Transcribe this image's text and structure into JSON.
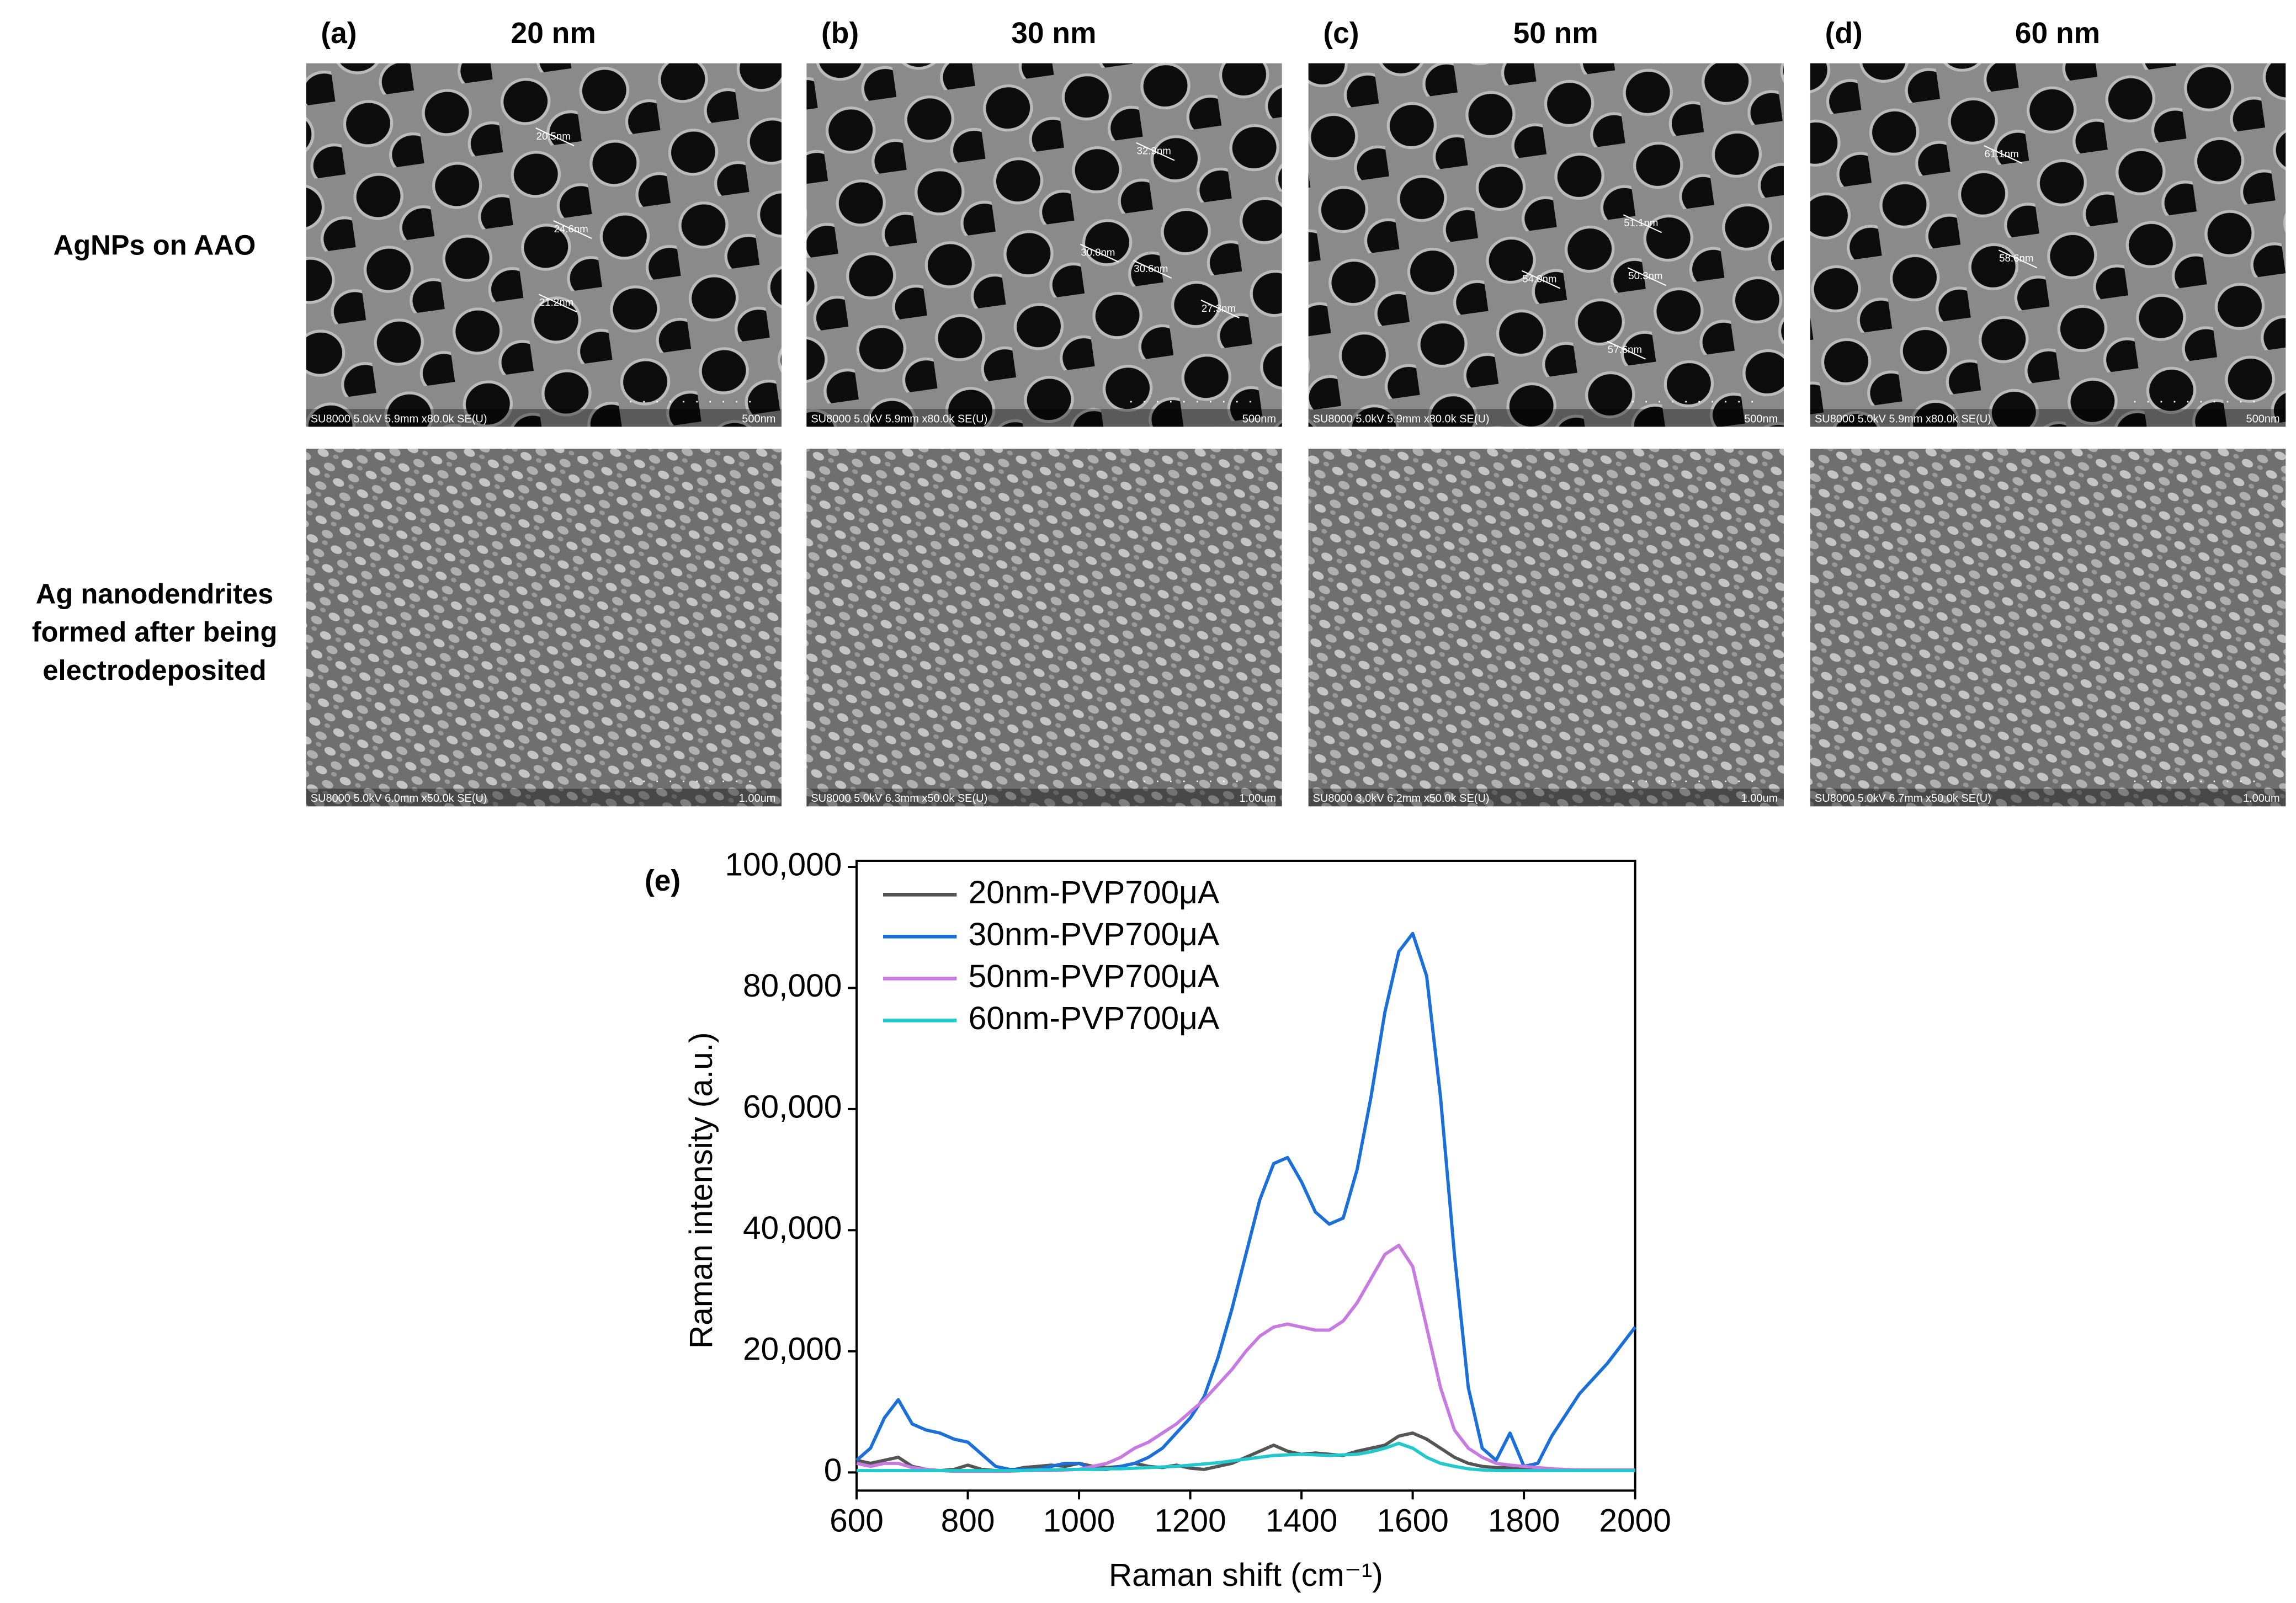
{
  "panels": [
    {
      "label": "(a)",
      "title": "20 nm",
      "sem": [
        {
          "info": "SU8000 5.0kV 5.9mm x80.0k SE(U)",
          "scale": "500nm",
          "measurements": [
            "20.5nm",
            "24.6nm",
            "21.2nm"
          ]
        },
        {
          "info": "SU8000 5.0kV 6.0mm x50.0k SE(U)",
          "scale": "1.00um"
        }
      ]
    },
    {
      "label": "(b)",
      "title": "30 nm",
      "sem": [
        {
          "info": "SU8000 5.0kV 5.9mm x80.0k SE(U)",
          "scale": "500nm",
          "measurements": [
            "32.9nm",
            "30.0nm",
            "30.6nm",
            "27.3nm"
          ]
        },
        {
          "info": "SU8000 5.0kV 6.3mm x50.0k SE(U)",
          "scale": "1.00um"
        }
      ]
    },
    {
      "label": "(c)",
      "title": "50 nm",
      "sem": [
        {
          "info": "SU8000 5.0kV 5.9mm x80.0k SE(U)",
          "scale": "500nm",
          "measurements": [
            "51.1nm",
            "54.0nm",
            "50.3nm",
            "57.6nm"
          ]
        },
        {
          "info": "SU8000 3.0kV 6.2mm x50.0k SE(U)",
          "scale": "1.00um"
        }
      ]
    },
    {
      "label": "(d)",
      "title": "60 nm",
      "sem": [
        {
          "info": "SU8000 5.0kV 5.9mm x80.0k SE(U)",
          "scale": "500nm",
          "measurements": [
            "61.1nm",
            "58.6nm"
          ]
        },
        {
          "info": "SU8000 5.0kV 6.7mm x50.0k SE(U)",
          "scale": "1.00um"
        }
      ]
    }
  ],
  "row_labels": [
    {
      "lines": [
        "AgNPs on AAO"
      ]
    },
    {
      "lines": [
        "Ag nanodendrites",
        "formed after being",
        "electrodeposited"
      ]
    }
  ],
  "chart_data": {
    "type": "line",
    "panel_label": "(e)",
    "x_label": "Raman shift (cm⁻¹)",
    "y_label": "Raman intensity (a.u.)",
    "x": [
      600,
      625,
      650,
      675,
      700,
      725,
      750,
      775,
      800,
      825,
      850,
      875,
      900,
      925,
      950,
      975,
      1000,
      1025,
      1050,
      1075,
      1100,
      1125,
      1150,
      1175,
      1200,
      1225,
      1250,
      1275,
      1300,
      1325,
      1350,
      1375,
      1400,
      1425,
      1450,
      1475,
      1500,
      1525,
      1550,
      1575,
      1600,
      1625,
      1650,
      1675,
      1700,
      1725,
      1750,
      1775,
      1800,
      1825,
      1850,
      1875,
      1900,
      1925,
      1950,
      1975,
      2000
    ],
    "series": [
      {
        "name": "20nm-PVP700μA",
        "color": "#555555",
        "values": [
          2000,
          1500,
          2000,
          2500,
          1000,
          500,
          300,
          500,
          1200,
          500,
          300,
          300,
          800,
          1000,
          1200,
          1000,
          1500,
          1000,
          800,
          1000,
          1500,
          1000,
          800,
          1200,
          700,
          500,
          1000,
          1500,
          2500,
          3500,
          4500,
          3500,
          3000,
          3200,
          3000,
          2800,
          3500,
          4000,
          4500,
          6000,
          6500,
          5500,
          4000,
          2500,
          1500,
          1000,
          800,
          800,
          800,
          600,
          500,
          400,
          400,
          300,
          300,
          300,
          300
        ]
      },
      {
        "name": "30nm-PVP700μA",
        "color": "#1a6fd8",
        "values": [
          2000,
          4000,
          9000,
          12000,
          8000,
          7000,
          6500,
          5500,
          5000,
          3000,
          1000,
          500,
          500,
          500,
          1000,
          1500,
          1500,
          500,
          500,
          1000,
          1500,
          2500,
          4000,
          6500,
          9000,
          12500,
          19000,
          27000,
          36000,
          45000,
          51000,
          52000,
          48000,
          43000,
          41000,
          42000,
          50000,
          62000,
          76000,
          86000,
          89000,
          82000,
          62000,
          36000,
          14000,
          4000,
          2000,
          6500,
          1000,
          1500,
          6000,
          9500,
          13000,
          15500,
          18000,
          21000,
          24000
        ]
      },
      {
        "name": "50nm-PVP700μA",
        "color": "#c77be0",
        "values": [
          1500,
          1000,
          1500,
          1500,
          800,
          500,
          300,
          200,
          200,
          200,
          200,
          200,
          300,
          300,
          300,
          400,
          500,
          1000,
          1500,
          2500,
          4000,
          5000,
          6500,
          8000,
          10000,
          12000,
          14500,
          17000,
          20000,
          22500,
          24000,
          24500,
          24000,
          23500,
          23500,
          25000,
          28000,
          32000,
          36000,
          37500,
          34000,
          24000,
          14000,
          7000,
          4000,
          2500,
          1500,
          1200,
          1000,
          800,
          600,
          500,
          400,
          400,
          400,
          400,
          400
        ]
      },
      {
        "name": "60nm-PVP700μA",
        "color": "#22c8cc",
        "values": [
          300,
          300,
          300,
          300,
          300,
          300,
          300,
          300,
          300,
          300,
          300,
          300,
          300,
          400,
          400,
          500,
          500,
          500,
          600,
          600,
          700,
          800,
          900,
          1000,
          1200,
          1400,
          1600,
          1900,
          2200,
          2500,
          2800,
          2900,
          3000,
          2900,
          2800,
          2900,
          3000,
          3400,
          4000,
          4800,
          4000,
          2500,
          1500,
          1000,
          600,
          400,
          300,
          300,
          300,
          300,
          300,
          300,
          300,
          300,
          300,
          300,
          300
        ]
      }
    ],
    "xlim": [
      600,
      2000
    ],
    "ylim": [
      -3000,
      101000
    ],
    "xticks": [
      600,
      800,
      1000,
      1200,
      1400,
      1600,
      1800,
      2000
    ],
    "yticks": [
      0,
      {
        "value": 20000,
        "label": "20,000"
      },
      {
        "value": 40000,
        "label": "40,000"
      },
      {
        "value": 60000,
        "label": "60,000"
      },
      {
        "value": 80000,
        "label": "80,000"
      },
      {
        "value": 100000,
        "label": "100,000"
      }
    ],
    "legend": "upper-left"
  }
}
